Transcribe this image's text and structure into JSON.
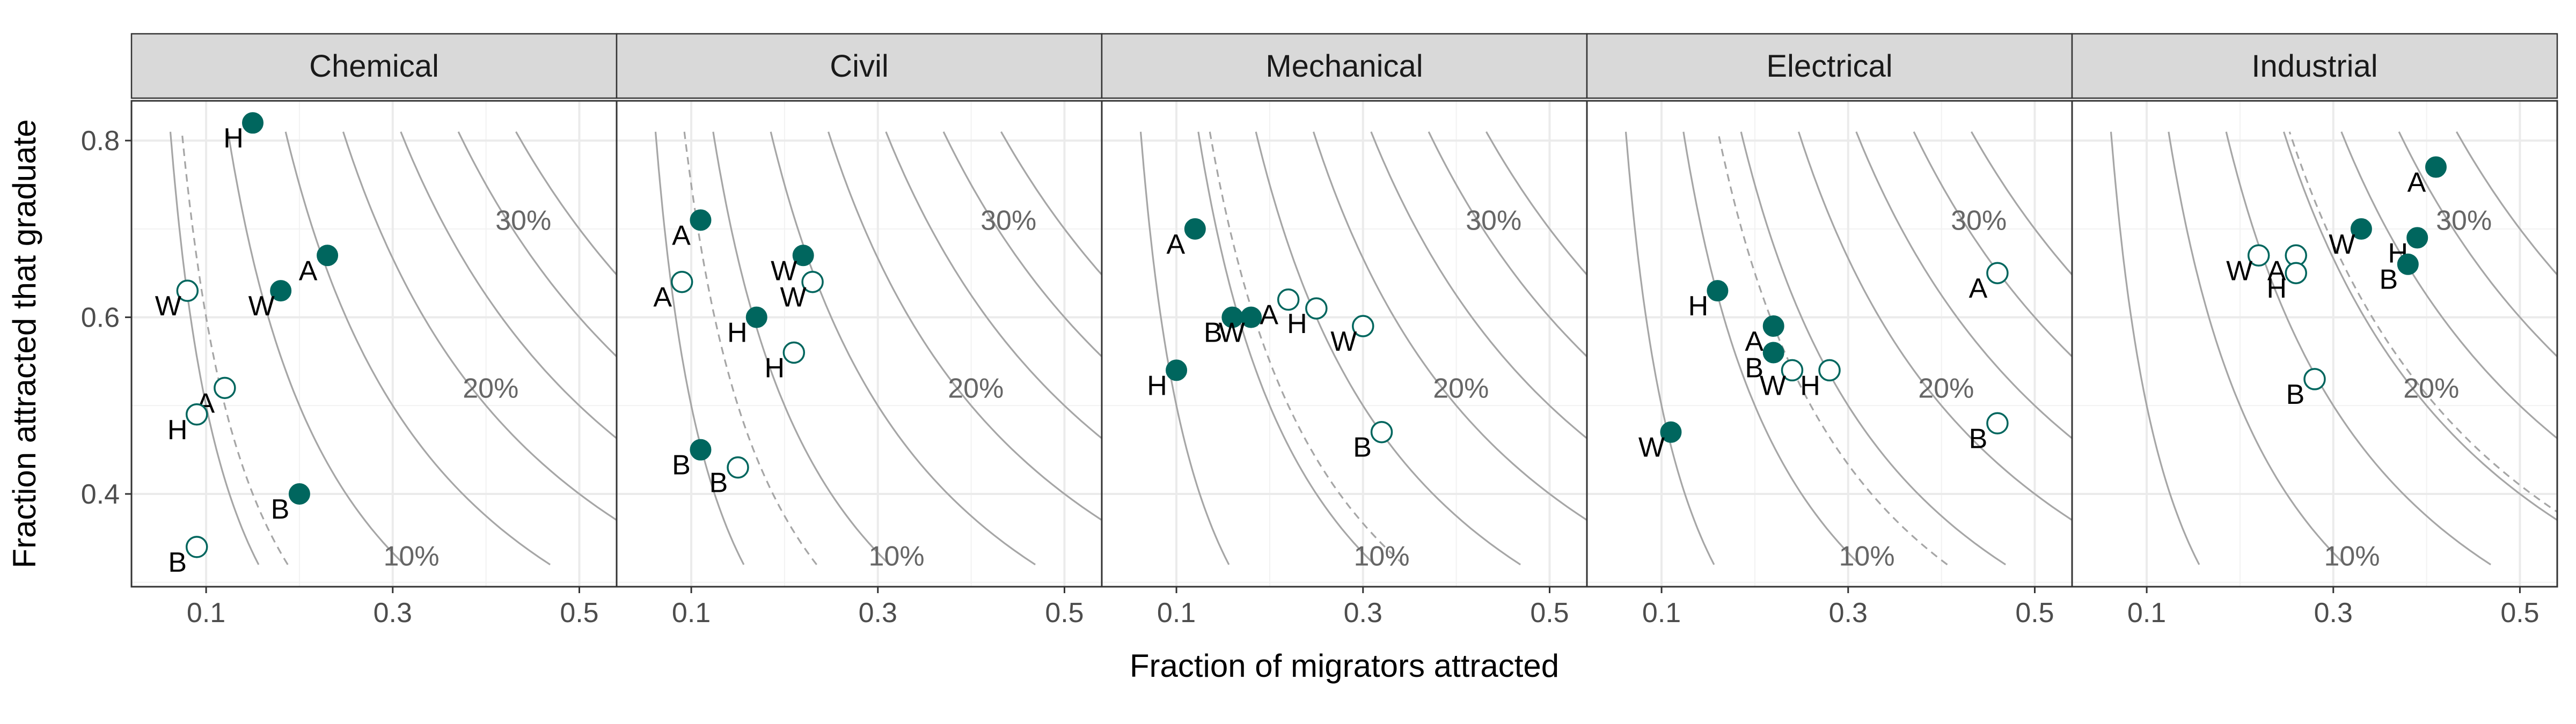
{
  "chart_data": {
    "type": "scatter",
    "title": "",
    "xlabel": "Fraction of migrators attracted",
    "ylabel": "Fraction attracted that graduate",
    "xlim": [
      0.02,
      0.54
    ],
    "ylim": [
      0.295,
      0.845
    ],
    "x_ticks": [
      0.1,
      0.3,
      0.5
    ],
    "y_ticks": [
      0.4,
      0.6,
      0.8
    ],
    "x_tick_labels": [
      "0.1",
      "0.3",
      "0.5"
    ],
    "y_tick_labels": [
      "0.4",
      "0.6",
      "0.8"
    ],
    "grid": true,
    "legend": "none",
    "series_encoding": {
      "filled": "filled circle (dark teal)",
      "open": "open circle (teal outline)"
    },
    "colors": {
      "point": "#00665e",
      "contour": "#a6a6a6",
      "grid": "#ebebeb",
      "strip": "#d9d9d9",
      "panel_border": "#333333"
    },
    "contours": {
      "description": "Iso-lines of x*y (fraction of migrators that graduate), steps of 0.05",
      "levels": [
        0.05,
        0.1,
        0.15,
        0.2,
        0.25,
        0.3,
        0.35
      ],
      "labels": [
        {
          "text": "10%",
          "x": 0.32,
          "y": 0.33
        },
        {
          "text": "20%",
          "x": 0.405,
          "y": 0.52
        },
        {
          "text": "30%",
          "x": 0.44,
          "y": 0.71
        }
      ]
    },
    "panels": [
      {
        "name": "Chemical",
        "dashed_level": 0.06,
        "points": [
          {
            "label": "H",
            "fill": "filled",
            "x": 0.15,
            "y": 0.82,
            "label_pos": "left-below"
          },
          {
            "label": "A",
            "fill": "filled",
            "x": 0.23,
            "y": 0.67,
            "label_pos": "left-below"
          },
          {
            "label": "W",
            "fill": "filled",
            "x": 0.18,
            "y": 0.63,
            "label_pos": "left-below"
          },
          {
            "label": "W",
            "fill": "open",
            "x": 0.08,
            "y": 0.63,
            "label_pos": "left-below"
          },
          {
            "label": "A",
            "fill": "open",
            "x": 0.12,
            "y": 0.52,
            "label_pos": "left-below"
          },
          {
            "label": "H",
            "fill": "open",
            "x": 0.09,
            "y": 0.49,
            "label_pos": "left-below"
          },
          {
            "label": "B",
            "fill": "filled",
            "x": 0.2,
            "y": 0.4,
            "label_pos": "left-below"
          },
          {
            "label": "B",
            "fill": "open",
            "x": 0.09,
            "y": 0.34,
            "label_pos": "left-below"
          }
        ]
      },
      {
        "name": "Civil",
        "dashed_level": 0.075,
        "points": [
          {
            "label": "A",
            "fill": "filled",
            "x": 0.11,
            "y": 0.71,
            "label_pos": "left-below"
          },
          {
            "label": "A",
            "fill": "open",
            "x": 0.09,
            "y": 0.64,
            "label_pos": "left-below"
          },
          {
            "label": "W",
            "fill": "filled",
            "x": 0.22,
            "y": 0.67,
            "label_pos": "left-below"
          },
          {
            "label": "W",
            "fill": "open",
            "x": 0.23,
            "y": 0.64,
            "label_pos": "left-below"
          },
          {
            "label": "H",
            "fill": "filled",
            "x": 0.17,
            "y": 0.6,
            "label_pos": "left-below"
          },
          {
            "label": "H",
            "fill": "open",
            "x": 0.21,
            "y": 0.56,
            "label_pos": "left-below"
          },
          {
            "label": "B",
            "fill": "filled",
            "x": 0.11,
            "y": 0.45,
            "label_pos": "left-below"
          },
          {
            "label": "B",
            "fill": "open",
            "x": 0.15,
            "y": 0.43,
            "label_pos": "left-below"
          }
        ]
      },
      {
        "name": "Mechanical",
        "dashed_level": 0.11,
        "points": [
          {
            "label": "A",
            "fill": "filled",
            "x": 0.12,
            "y": 0.7,
            "label_pos": "left-below"
          },
          {
            "label": "A",
            "fill": "open",
            "x": 0.22,
            "y": 0.62,
            "label_pos": "left-below"
          },
          {
            "label": "H",
            "fill": "open",
            "x": 0.25,
            "y": 0.61,
            "label_pos": "left-below"
          },
          {
            "label": "B",
            "fill": "filled",
            "x": 0.16,
            "y": 0.6,
            "label_pos": "left-below"
          },
          {
            "label": "W",
            "fill": "filled",
            "x": 0.18,
            "y": 0.6,
            "label_pos": "left-below"
          },
          {
            "label": "W",
            "fill": "open",
            "x": 0.3,
            "y": 0.59,
            "label_pos": "left-below"
          },
          {
            "label": "H",
            "fill": "filled",
            "x": 0.1,
            "y": 0.54,
            "label_pos": "left-below"
          },
          {
            "label": "B",
            "fill": "open",
            "x": 0.32,
            "y": 0.47,
            "label_pos": "left-below"
          }
        ]
      },
      {
        "name": "Electrical",
        "dashed_level": 0.13,
        "points": [
          {
            "label": "A",
            "fill": "open",
            "x": 0.46,
            "y": 0.65,
            "label_pos": "left-below"
          },
          {
            "label": "H",
            "fill": "filled",
            "x": 0.16,
            "y": 0.63,
            "label_pos": "left-below"
          },
          {
            "label": "A",
            "fill": "filled",
            "x": 0.22,
            "y": 0.59,
            "label_pos": "left-below"
          },
          {
            "label": "B",
            "fill": "filled",
            "x": 0.22,
            "y": 0.56,
            "label_pos": "left-below"
          },
          {
            "label": "W",
            "fill": "open",
            "x": 0.24,
            "y": 0.54,
            "label_pos": "left-below"
          },
          {
            "label": "H",
            "fill": "open",
            "x": 0.28,
            "y": 0.54,
            "label_pos": "left-below"
          },
          {
            "label": "B",
            "fill": "open",
            "x": 0.46,
            "y": 0.48,
            "label_pos": "left-below"
          },
          {
            "label": "W",
            "fill": "filled",
            "x": 0.11,
            "y": 0.47,
            "label_pos": "left-below"
          }
        ]
      },
      {
        "name": "Industrial",
        "dashed_level": 0.205,
        "points": [
          {
            "label": "A",
            "fill": "filled",
            "x": 0.41,
            "y": 0.77,
            "label_pos": "left-below"
          },
          {
            "label": "W",
            "fill": "filled",
            "x": 0.33,
            "y": 0.7,
            "label_pos": "left-below"
          },
          {
            "label": "H",
            "fill": "filled",
            "x": 0.39,
            "y": 0.69,
            "label_pos": "left-below"
          },
          {
            "label": "B",
            "fill": "filled",
            "x": 0.38,
            "y": 0.66,
            "label_pos": "left-below"
          },
          {
            "label": "W",
            "fill": "open",
            "x": 0.22,
            "y": 0.67,
            "label_pos": "left-below"
          },
          {
            "label": "A",
            "fill": "open",
            "x": 0.26,
            "y": 0.67,
            "label_pos": "left-below"
          },
          {
            "label": "H",
            "fill": "open",
            "x": 0.26,
            "y": 0.65,
            "label_pos": "left-below"
          },
          {
            "label": "B",
            "fill": "open",
            "x": 0.28,
            "y": 0.53,
            "label_pos": "left-below"
          }
        ]
      }
    ]
  }
}
